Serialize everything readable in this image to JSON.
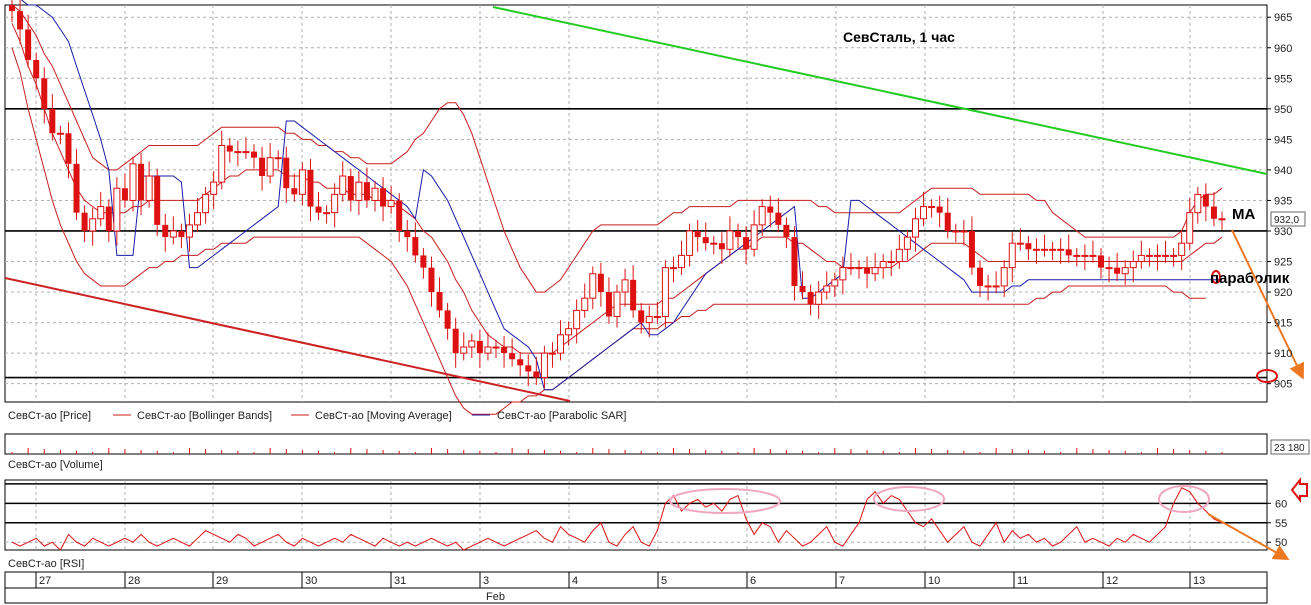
{
  "chart_data": {
    "type": "candlestick",
    "title": "СевСталь,   1 час",
    "annotations": {
      "ma_label": "МА",
      "sar_label": "параболик"
    },
    "colors": {
      "candle": "#dd1111",
      "bollinger": "#c81e1e",
      "moving_average": "#c81e1e",
      "parabolic_sar": "#1a1aa8",
      "trend_upper": "#22cc22",
      "trend_lower": "#cc2222",
      "level_line": "#000000",
      "forecast_arrow": "#ee7722",
      "rsi_highlight": "#f0a8c0",
      "grid": "#b0b0b0"
    },
    "price": {
      "ylim": [
        902,
        967
      ],
      "yticks": [
        965,
        960,
        955,
        950,
        945,
        940,
        935,
        930,
        925,
        920,
        915,
        910,
        905
      ],
      "last_price_badge": "932,0",
      "horizontal_levels": [
        950,
        930,
        906
      ],
      "legend": [
        "СевСт-ао [Price]",
        "СевСт-ао [Bollinger Bands]",
        "СевСт-ао [Moving Average]",
        "СевСт-ао [Parabolic SAR]"
      ],
      "close": [
        966.0,
        963.0,
        958.0,
        955.0,
        950.0,
        946.0,
        946.0,
        941.0,
        933.0,
        930.0,
        932.0,
        934.0,
        930.0,
        937.0,
        935.0,
        941.0,
        935.0,
        939.0,
        931.0,
        929.0,
        930.0,
        929.0,
        931.0,
        933.0,
        936.0,
        938.0,
        944.0,
        943.0,
        943.0,
        943.0,
        942.0,
        939.0,
        942.0,
        942.0,
        937.0,
        936.0,
        940.0,
        934.0,
        933.0,
        933.0,
        936.0,
        939.0,
        935.0,
        938.0,
        935.0,
        937.0,
        934.0,
        935.0,
        930.0,
        929.0,
        926.0,
        924.0,
        920.0,
        917.0,
        914.0,
        910.0,
        911.0,
        912.0,
        910.0,
        911.0,
        911.0,
        910.0,
        909.0,
        908.0,
        907.0,
        906.0,
        910.0,
        910.0,
        913.0,
        914.0,
        917.0,
        919.0,
        923.0,
        920.0,
        916.0,
        920.0,
        922.0,
        917.0,
        915.0,
        916.0,
        916.0,
        924.0,
        924.0,
        926.0,
        930.0,
        929.0,
        928.0,
        928.0,
        927.0,
        930.0,
        929.0,
        927.0,
        931.0,
        934.0,
        933.0,
        931.0,
        929.0,
        921.0,
        920.0,
        918.0,
        920.0,
        921.0,
        922.0,
        924.0,
        924.0,
        924.0,
        923.0,
        924.0,
        925.0,
        925.0,
        927.0,
        929.0,
        932.0,
        934.0,
        934.0,
        933.0,
        930.0,
        930.0,
        930.0,
        924.0,
        921.0,
        921.0,
        921.0,
        924.0,
        928.0,
        928.0,
        927.0,
        927.0,
        927.0,
        927.0,
        927.0,
        926.0,
        926.0,
        926.0,
        926.0,
        924.0,
        924.0,
        923.0,
        924.0,
        925.0,
        926.0,
        926.0,
        926.0,
        926.0,
        926.0,
        928.0,
        933.0,
        936.0,
        934.0,
        932.0,
        932.0
      ],
      "bollinger_upper": [
        967.0,
        966.0,
        964.0,
        962.0,
        959.0,
        957.0,
        954.0,
        951.0,
        948.0,
        945.0,
        942.0,
        941.0,
        940.0,
        940.0,
        941.0,
        942.0,
        943.0,
        944.0,
        944.0,
        944.0,
        944.0,
        944.0,
        944.0,
        944.0,
        945.0,
        946.0,
        947.0,
        947.0,
        947.0,
        947.0,
        947.0,
        947.0,
        947.0,
        947.0,
        946.0,
        946.0,
        945.0,
        945.0,
        944.0,
        944.0,
        943.0,
        943.0,
        942.0,
        942.0,
        941.0,
        941.0,
        941.0,
        941.0,
        942.0,
        943.0,
        945.0,
        946.0,
        948.0,
        950.0,
        951.0,
        951.0,
        949.0,
        946.0,
        942.0,
        938.0,
        934.0,
        930.0,
        927.0,
        924.0,
        922.0,
        920.0,
        920.0,
        921.0,
        922.0,
        924.0,
        926.0,
        928.0,
        930.0,
        931.0,
        931.0,
        931.0,
        931.0,
        931.0,
        931.0,
        931.0,
        931.0,
        932.0,
        933.0,
        933.0,
        934.0,
        934.0,
        934.0,
        934.0,
        934.0,
        934.0,
        935.0,
        935.0,
        935.0,
        935.0,
        935.0,
        935.0,
        935.0,
        935.0,
        935.0,
        935.0,
        934.0,
        934.0,
        933.0,
        933.0,
        933.0,
        933.0,
        933.0,
        933.0,
        933.0,
        933.0,
        933.0,
        934.0,
        935.0,
        936.0,
        937.0,
        937.0,
        937.0,
        937.0,
        937.0,
        937.0,
        936.0,
        936.0,
        936.0,
        936.0,
        936.0,
        936.0,
        936.0,
        935.0,
        935.0,
        933.0,
        932.0,
        931.0,
        930.0,
        929.0,
        929.0,
        929.0,
        929.0,
        929.0,
        929.0,
        929.0,
        929.0,
        929.0,
        929.0,
        929.0,
        929.0,
        930.0,
        933.0,
        935.0,
        936.0,
        936.0,
        937.0
      ],
      "bollinger_lower": [
        960.0,
        956.0,
        950.0,
        945.0,
        940.0,
        935.0,
        931.0,
        928.0,
        925.0,
        923.0,
        922.0,
        921.0,
        921.0,
        921.0,
        921.0,
        922.0,
        923.0,
        924.0,
        924.0,
        925.0,
        925.0,
        926.0,
        926.0,
        926.0,
        927.0,
        927.0,
        928.0,
        928.0,
        928.0,
        928.0,
        929.0,
        929.0,
        929.0,
        929.0,
        929.0,
        929.0,
        929.0,
        929.0,
        929.0,
        929.0,
        929.0,
        929.0,
        929.0,
        929.0,
        928.0,
        927.0,
        926.0,
        925.0,
        923.0,
        921.0,
        918.0,
        915.0,
        912.0,
        909.0,
        906.0,
        903.0,
        901.0,
        900.0,
        900.0,
        900.0,
        900.0,
        901.0,
        902.0,
        902.0,
        903.0,
        903.0,
        904.0,
        904.0,
        905.0,
        906.0,
        907.0,
        908.0,
        909.0,
        910.0,
        911.0,
        912.0,
        913.0,
        914.0,
        914.0,
        914.0,
        914.0,
        915.0,
        915.0,
        916.0,
        916.0,
        917.0,
        917.0,
        918.0,
        918.0,
        918.0,
        918.0,
        918.0,
        918.0,
        918.0,
        918.0,
        918.0,
        918.0,
        918.0,
        918.0,
        918.0,
        918.0,
        918.0,
        918.0,
        918.0,
        918.0,
        918.0,
        918.0,
        918.0,
        918.0,
        918.0,
        918.0,
        918.0,
        918.0,
        918.0,
        918.0,
        918.0,
        918.0,
        918.0,
        918.0,
        918.0,
        918.0,
        918.0,
        918.0,
        918.0,
        918.0,
        918.0,
        918.0,
        919.0,
        919.0,
        920.0,
        920.0,
        921.0,
        921.0,
        921.0,
        921.0,
        921.0,
        921.0,
        921.0,
        921.0,
        921.0,
        921.0,
        921.0,
        921.0,
        921.0,
        920.0,
        920.0,
        919.0,
        919.0,
        919.0
      ],
      "moving_average": [
        964.0,
        961.0,
        957.0,
        954.0,
        950.0,
        946.0,
        943.0,
        940.0,
        937.0,
        935.0,
        934.0,
        933.0,
        933.0,
        933.0,
        933.0,
        934.0,
        934.0,
        935.0,
        935.0,
        935.0,
        935.0,
        935.0,
        935.0,
        935.0,
        936.0,
        937.0,
        938.0,
        939.0,
        939.0,
        940.0,
        940.0,
        940.0,
        940.0,
        940.0,
        939.0,
        939.0,
        939.0,
        938.0,
        938.0,
        937.0,
        937.0,
        937.0,
        936.0,
        936.0,
        936.0,
        935.0,
        935.0,
        935.0,
        934.0,
        933.0,
        932.0,
        930.0,
        929.0,
        927.0,
        925.0,
        922.0,
        920.0,
        917.0,
        915.0,
        913.0,
        912.0,
        911.0,
        911.0,
        910.0,
        910.0,
        910.0,
        910.0,
        910.0,
        911.0,
        912.0,
        913.0,
        914.0,
        915.0,
        916.0,
        917.0,
        918.0,
        918.0,
        918.0,
        918.0,
        918.0,
        918.0,
        919.0,
        919.0,
        920.0,
        921.0,
        922.0,
        923.0,
        924.0,
        925.0,
        926.0,
        927.0,
        927.0,
        928.0,
        929.0,
        929.0,
        929.0,
        929.0,
        928.0,
        928.0,
        927.0,
        926.0,
        925.0,
        925.0,
        924.0,
        924.0,
        924.0,
        924.0,
        924.0,
        924.0,
        924.0,
        925.0,
        925.0,
        926.0,
        927.0,
        928.0,
        928.0,
        928.0,
        928.0,
        928.0,
        927.0,
        926.0,
        925.0,
        925.0,
        925.0,
        925.0,
        925.0,
        925.0,
        925.0,
        925.0,
        925.0,
        925.0,
        925.0,
        925.0,
        925.0,
        925.0,
        925.0,
        925.0,
        925.0,
        925.0,
        925.0,
        925.0,
        925.0,
        925.0,
        925.0,
        925.0,
        925.0,
        926.0,
        927.0,
        928.0,
        928.0,
        929.0
      ],
      "parabolic_sar": [
        968.0,
        968.0,
        967.0,
        967.0,
        966.0,
        965.0,
        963.0,
        961.0,
        957.0,
        953.0,
        949.0,
        945.0,
        940.0,
        926.0,
        926.0,
        926.0,
        939.0,
        939.0,
        939.0,
        939.0,
        939.0,
        938.0,
        924.0,
        924.0,
        925.0,
        926.0,
        927.0,
        928.0,
        929.0,
        930.0,
        931.0,
        932.0,
        933.0,
        934.0,
        948.0,
        948.0,
        947.0,
        946.0,
        945.0,
        944.0,
        943.0,
        942.0,
        941.0,
        940.0,
        939.0,
        938.0,
        937.0,
        936.0,
        935.0,
        934.0,
        932.0,
        940.0,
        939.0,
        937.0,
        935.0,
        932.0,
        929.0,
        926.0,
        923.0,
        920.0,
        917.0,
        914.0,
        913.0,
        912.0,
        911.0,
        909.0,
        904.0,
        904.0,
        905.0,
        906.0,
        907.0,
        908.0,
        909.0,
        910.0,
        911.0,
        912.0,
        913.0,
        914.0,
        915.0,
        913.0,
        913.0,
        914.0,
        915.0,
        917.0,
        919.0,
        921.0,
        923.0,
        924.0,
        925.0,
        926.0,
        927.0,
        928.0,
        929.0,
        930.0,
        931.0,
        932.0,
        933.0,
        934.0,
        919.0,
        919.0,
        920.0,
        921.0,
        922.0,
        923.0,
        935.0,
        935.0,
        934.0,
        933.0,
        932.0,
        931.0,
        930.0,
        929.0,
        928.0,
        927.0,
        926.0,
        925.0,
        924.0,
        923.0,
        922.0,
        920.0,
        920.0,
        920.0,
        920.0,
        920.0,
        921.0,
        921.0,
        922.0,
        922.0,
        922.0,
        922.0,
        922.0,
        922.0,
        922.0,
        922.0,
        922.0,
        922.0,
        922.0,
        922.0,
        922.0,
        922.0,
        922.0,
        922.0,
        922.0,
        922.0,
        922.0,
        922.0,
        922.0,
        922.0,
        922.0,
        922.0,
        922.0
      ]
    },
    "volume": {
      "legend": "СевСт-ао [Volume]",
      "last_value_badge": "23 180"
    },
    "rsi": {
      "legend": "СевСт-ао [RSI]",
      "ylim": [
        48,
        66
      ],
      "yticks": [
        60,
        55,
        50
      ],
      "levels": [
        65,
        60,
        55
      ],
      "values": [
        50,
        49,
        50,
        51,
        49,
        50,
        48,
        52,
        50,
        49,
        51,
        50,
        49,
        50,
        51,
        50,
        52,
        50,
        49,
        50,
        51,
        50,
        49,
        51,
        53,
        52,
        51,
        50,
        52,
        51,
        49,
        50,
        51,
        52,
        50,
        49,
        51,
        50,
        49,
        50,
        51,
        50,
        52,
        51,
        50,
        49,
        51,
        50,
        49,
        50,
        49,
        50,
        51,
        50,
        49,
        50,
        48,
        49,
        50,
        51,
        50,
        49,
        50,
        51,
        52,
        53,
        51,
        50,
        54,
        52,
        51,
        50,
        53,
        55,
        50,
        49,
        52,
        54,
        50,
        49,
        53,
        60,
        62,
        58,
        60,
        61,
        59,
        60,
        58,
        61,
        62,
        56,
        52,
        55,
        54,
        50,
        53,
        51,
        49,
        50,
        52,
        54,
        50,
        49,
        52,
        55,
        61,
        63,
        60,
        62,
        61,
        58,
        55,
        54,
        56,
        53,
        50,
        52,
        54,
        50,
        49,
        52,
        55,
        50,
        53,
        51,
        52,
        50,
        51,
        49,
        50,
        52,
        54,
        50,
        51,
        50,
        49,
        51,
        50,
        52,
        51,
        50,
        52,
        54,
        60,
        64,
        63,
        60,
        58,
        56,
        55
      ]
    },
    "time_axis": {
      "days": [
        "27",
        "28",
        "29",
        "30",
        "31",
        "3",
        "4",
        "5",
        "6",
        "7",
        "10",
        "11",
        "12",
        "13"
      ],
      "month": "Feb"
    }
  }
}
